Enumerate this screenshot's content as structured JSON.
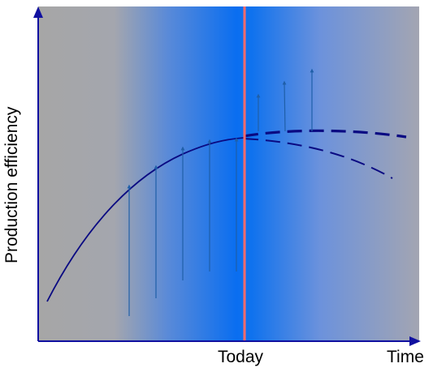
{
  "diagram": {
    "y_axis_label": "Production efficiency",
    "x_axis_marker_label": "Today",
    "x_axis_label": "Time",
    "colors": {
      "background_outer": "#a6a6a6",
      "background_center": "#0a6ef0",
      "today_line": "#ff6b6b",
      "curve": "#0a0a82",
      "arrows": "#1f5fa8",
      "axes": "#1010a0"
    }
  }
}
